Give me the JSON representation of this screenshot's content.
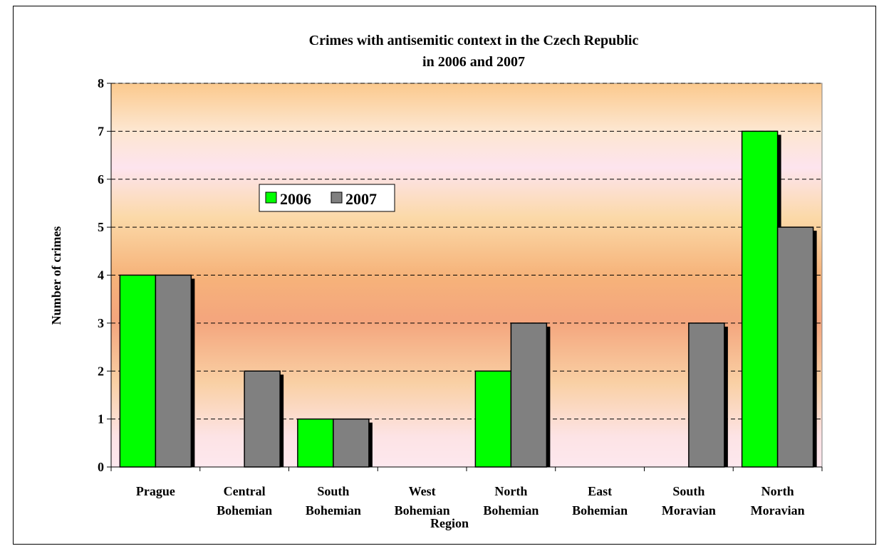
{
  "chart_data": {
    "type": "bar",
    "title_lines": [
      "Crimes  with antisemitic context in the Czech Republic",
      "in 2006 and 2007"
    ],
    "xlabel": "Region",
    "ylabel": "Number of crimes",
    "ylim": [
      0,
      8
    ],
    "yticks": [
      "0",
      "1",
      "2",
      "3",
      "4",
      "5",
      "6",
      "7",
      "8"
    ],
    "grid": "dashed horizontal",
    "legend_position": "upper-left inside plot",
    "categories": [
      [
        "Prague"
      ],
      [
        "Central",
        "Bohemian"
      ],
      [
        "South",
        "Bohemian"
      ],
      [
        "West",
        "Bohemian"
      ],
      [
        "North",
        "Bohemian"
      ],
      [
        "East",
        "Bohemian"
      ],
      [
        "South",
        "Moravian"
      ],
      [
        "North",
        "Moravian"
      ]
    ],
    "series": [
      {
        "name": "2006",
        "color": "#00ff00",
        "values": [
          4,
          0,
          1,
          0,
          2,
          0,
          0,
          7
        ]
      },
      {
        "name": "2007",
        "color": "#808080",
        "values": [
          4,
          2,
          1,
          0,
          3,
          0,
          3,
          5
        ]
      }
    ]
  }
}
